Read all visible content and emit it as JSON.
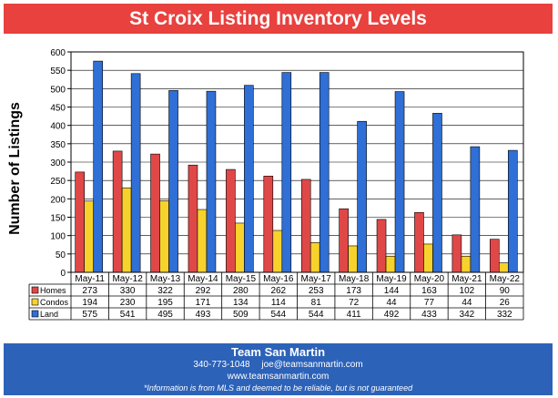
{
  "title": "St Croix Listing Inventory Levels",
  "colors": {
    "banner": "#e8413e",
    "footer": "#2c62b8",
    "homes": "#e04848",
    "condos": "#f7d22c",
    "land": "#2f6fd6"
  },
  "chart_data": {
    "type": "bar",
    "ylabel": "Number of Listings",
    "ylim": [
      0,
      600
    ],
    "yticks": [
      0,
      50,
      100,
      150,
      200,
      250,
      300,
      350,
      400,
      450,
      500,
      550,
      600
    ],
    "grid": true,
    "legend": "table rows below the chart",
    "categories": [
      "May-11",
      "May-12",
      "May-13",
      "May-14",
      "May-15",
      "May-16",
      "May-17",
      "May-18",
      "May-19",
      "May-20",
      "May-21",
      "May-22"
    ],
    "series": [
      {
        "name": "Homes",
        "color": "#e04848",
        "values": [
          273,
          330,
          322,
          292,
          280,
          262,
          253,
          173,
          144,
          163,
          102,
          90
        ]
      },
      {
        "name": "Condos",
        "color": "#f7d22c",
        "values": [
          194,
          230,
          195,
          171,
          134,
          114,
          81,
          72,
          44,
          77,
          44,
          26
        ]
      },
      {
        "name": "Land",
        "color": "#2f6fd6",
        "values": [
          575,
          541,
          495,
          493,
          509,
          544,
          544,
          411,
          492,
          433,
          342,
          332
        ]
      }
    ]
  },
  "footer": {
    "company": "Team San Martin",
    "phone": "340-773-1048",
    "email": "joe@teamsanmartin.com",
    "website": "www.teamsanmartin.com",
    "disclaimer": "*Information is from MLS and deemed to be reliable, but is not guaranteed"
  }
}
